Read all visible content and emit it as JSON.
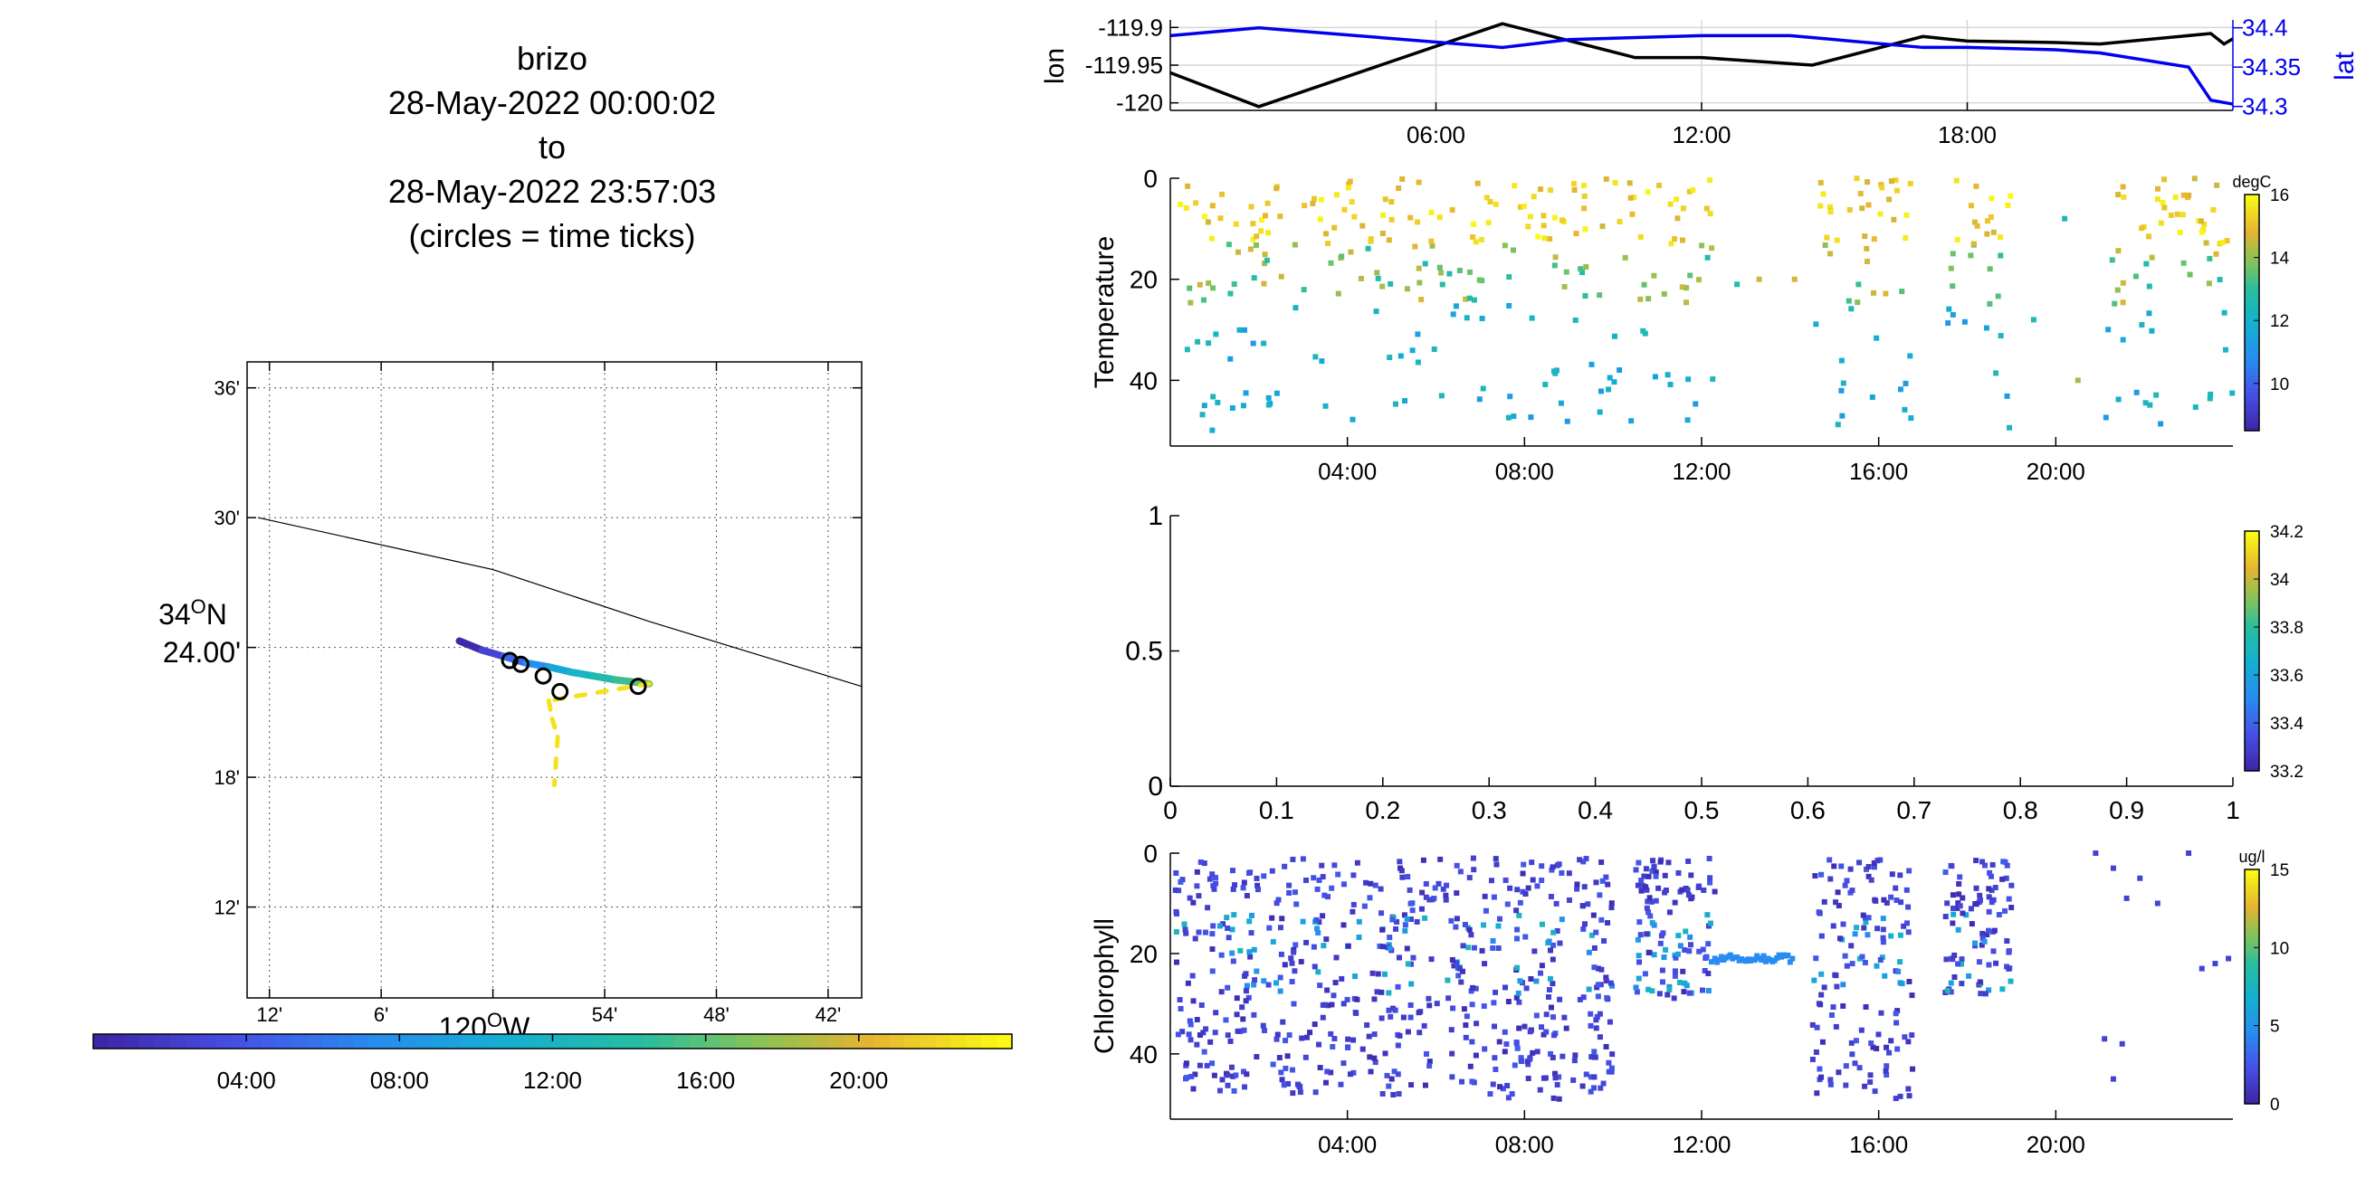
{
  "title": {
    "line1": "brizo",
    "line2": "28-May-2022 00:00:02",
    "line3": "to",
    "line4": "28-May-2022 23:57:03",
    "line5": "(circles = time ticks)"
  },
  "chart_data": [
    {
      "id": "map",
      "type": "scatter",
      "xlim": [
        -120.22,
        -119.67
      ],
      "ylim": [
        34.13,
        34.62
      ],
      "x_ticks": [
        -120.2,
        -120.1,
        -120.0,
        -119.9,
        -119.8,
        -119.7
      ],
      "x_tick_labels": [
        "12'",
        "6'",
        "",
        "54'",
        "48'",
        "42'"
      ],
      "y_ticks": [
        34.2,
        34.3,
        34.4,
        34.5,
        34.6
      ],
      "y_tick_labels": [
        "12'",
        "18'",
        "",
        "30'",
        "36'"
      ],
      "y_center_label_deg": "34",
      "y_center_label_dir": "N",
      "y_center_label_min": "24.00'",
      "x_center_label_deg": "120",
      "x_center_label_dir": "W",
      "grid": true,
      "coastline": [
        [
          -120.21,
          34.5
        ],
        [
          -120.0,
          34.46
        ],
        [
          -119.86,
          34.42
        ],
        [
          -119.67,
          34.37
        ]
      ],
      "track_color_hours": [
        0.2,
        2.5,
        5,
        7.5,
        10,
        12,
        13.5,
        15,
        16.5,
        18,
        19,
        20.5,
        21.5,
        22.5
      ],
      "track": [
        [
          -120.03,
          34.405
        ],
        [
          -120.01,
          34.398
        ],
        [
          -119.99,
          34.393
        ],
        [
          -119.97,
          34.388
        ],
        [
          -119.95,
          34.385
        ],
        [
          -119.93,
          34.381
        ],
        [
          -119.91,
          34.378
        ],
        [
          -119.89,
          34.375
        ],
        [
          -119.87,
          34.373
        ],
        [
          -119.86,
          34.372
        ],
        [
          -119.95,
          34.359
        ],
        [
          -119.947,
          34.345
        ],
        [
          -119.942,
          34.331
        ],
        [
          -119.945,
          34.294
        ]
      ],
      "time_tick_circles": [
        [
          -119.985,
          34.39
        ],
        [
          -119.975,
          34.387
        ],
        [
          -119.955,
          34.378
        ],
        [
          -119.94,
          34.366
        ],
        [
          -119.87,
          34.37
        ]
      ],
      "colorbar": {
        "range_hours": [
          0,
          24
        ],
        "ticks_hours": [
          4,
          8,
          12,
          16,
          20
        ],
        "tick_labels": [
          "04:00",
          "08:00",
          "12:00",
          "16:00",
          "20:00"
        ]
      }
    },
    {
      "id": "lonlat",
      "type": "line",
      "xlim_hours": [
        0,
        24
      ],
      "x_ticks_hours": [
        6,
        12,
        18
      ],
      "x_tick_labels": [
        "06:00",
        "12:00",
        "18:00"
      ],
      "ylabel_left": "lon",
      "ylabel_right": "lat",
      "y_left_lim": [
        -120.01,
        -119.89
      ],
      "y_left_ticks": [
        -119.9,
        -119.95,
        -120
      ],
      "y_left_tick_labels": [
        "-119.9",
        "-119.95",
        "-120"
      ],
      "y_right_lim": [
        34.295,
        34.41
      ],
      "y_right_ticks": [
        34.4,
        34.35,
        34.3
      ],
      "y_right_tick_labels": [
        "34.4",
        "34.35",
        "34.3"
      ],
      "grid": true,
      "series": [
        {
          "color": "#000000",
          "x": [
            0,
            2,
            7.5,
            10.5,
            12,
            14.5,
            17,
            18,
            20,
            21,
            23.5,
            23.8,
            24
          ],
          "y": [
            -119.96,
            -120.005,
            -119.895,
            -119.94,
            -119.94,
            -119.95,
            -119.912,
            -119.918,
            -119.92,
            -119.922,
            -119.908,
            -119.922,
            -119.915
          ]
        },
        {
          "color": "#0000ee",
          "x": [
            0,
            2,
            7.5,
            9,
            12,
            14,
            17,
            18,
            20,
            21,
            23,
            23.5,
            24
          ],
          "y": [
            34.39,
            34.4,
            34.375,
            34.385,
            34.39,
            34.39,
            34.375,
            34.375,
            34.372,
            34.368,
            34.35,
            34.308,
            34.303
          ]
        }
      ]
    },
    {
      "id": "temperature",
      "type": "scatter",
      "ylabel": "Temperature",
      "xlim_hours": [
        0,
        24
      ],
      "x_ticks_hours": [
        4,
        8,
        12,
        16,
        20
      ],
      "x_tick_labels": [
        "04:00",
        "08:00",
        "12:00",
        "16:00",
        "20:00"
      ],
      "ylim_depth": [
        0,
        53
      ],
      "y_ticks": [
        0,
        20,
        40
      ],
      "y_tick_labels": [
        "0",
        "20",
        "40"
      ],
      "colorbar": {
        "label": "degC",
        "range": [
          8.5,
          16
        ],
        "ticks": [
          10,
          12,
          14,
          16
        ],
        "tick_labels": [
          "10",
          "12",
          "14",
          "16"
        ]
      },
      "profile_windows_hours": [
        [
          0.1,
          3.1
        ],
        [
          3.2,
          6.2
        ],
        [
          6.3,
          9.0
        ],
        [
          9.1,
          10.5
        ],
        [
          10.6,
          12.3
        ],
        [
          14.5,
          16.8
        ],
        [
          17.5,
          19.0
        ],
        [
          21.0,
          24.0
        ]
      ],
      "sparse_points": [
        [
          12.8,
          21
        ],
        [
          13.3,
          20
        ],
        [
          14.1,
          20
        ],
        [
          19.5,
          28
        ],
        [
          20.5,
          40
        ],
        [
          20.2,
          8
        ]
      ]
    },
    {
      "id": "salinity",
      "type": "scatter",
      "xlim": [
        0,
        1
      ],
      "x_ticks": [
        0,
        0.1,
        0.2,
        0.3,
        0.4,
        0.5,
        0.6,
        0.7,
        0.8,
        0.9,
        1
      ],
      "x_tick_labels": [
        "0",
        "0.1",
        "0.2",
        "0.3",
        "0.4",
        "0.5",
        "0.6",
        "0.7",
        "0.8",
        "0.9",
        "1"
      ],
      "ylim": [
        0,
        1
      ],
      "y_ticks": [
        0,
        0.5,
        1
      ],
      "y_tick_labels": [
        "0",
        "0.5",
        "1"
      ],
      "colorbar": {
        "range": [
          33.2,
          34.2
        ],
        "ticks": [
          33.2,
          33.4,
          33.6,
          33.8,
          34,
          34.2
        ],
        "tick_labels": [
          "33.2",
          "33.4",
          "33.6",
          "33.8",
          "34",
          "34.2"
        ]
      }
    },
    {
      "id": "chlorophyll",
      "type": "scatter",
      "ylabel": "Chlorophyll",
      "xlim_hours": [
        0,
        24
      ],
      "x_ticks_hours": [
        4,
        8,
        12,
        16,
        20
      ],
      "x_tick_labels": [
        "04:00",
        "08:00",
        "12:00",
        "16:00",
        "20:00"
      ],
      "ylim_depth": [
        0,
        53
      ],
      "y_ticks": [
        0,
        20,
        40
      ],
      "y_tick_labels": [
        "0",
        "20",
        "40"
      ],
      "colorbar": {
        "label": "ug/l",
        "range": [
          0,
          15
        ],
        "ticks": [
          0,
          5,
          10,
          15
        ],
        "tick_labels": [
          "0",
          "5",
          "10",
          "15"
        ]
      },
      "profile_windows_hours": [
        [
          0.1,
          10.0
        ],
        [
          10.5,
          12.3
        ],
        [
          14.5,
          16.8
        ],
        [
          17.5,
          19.0
        ]
      ],
      "plateau_segment": {
        "x_hours": [
          12.3,
          14.1
        ],
        "depth": 21
      },
      "sparse_points": [
        [
          20.9,
          0
        ],
        [
          21.3,
          3
        ],
        [
          21.6,
          9
        ],
        [
          21.9,
          5
        ],
        [
          22.3,
          10
        ],
        [
          23.0,
          0
        ],
        [
          21.1,
          37
        ],
        [
          21.5,
          38
        ],
        [
          21.3,
          45
        ],
        [
          23.3,
          23
        ],
        [
          23.6,
          22
        ],
        [
          23.9,
          21
        ]
      ]
    }
  ]
}
